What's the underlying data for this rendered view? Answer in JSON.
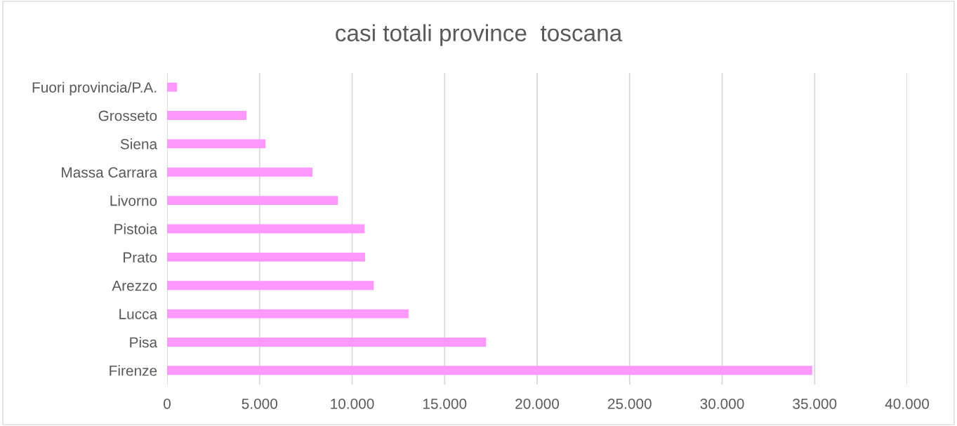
{
  "chart_data": {
    "type": "bar",
    "orientation": "horizontal",
    "title": "casi totali province  toscana",
    "categories": [
      "Fuori provincia/P.A.",
      "Grosseto",
      "Siena",
      "Massa Carrara",
      "Livorno",
      "Pistoia",
      "Prato",
      "Arezzo",
      "Lucca",
      "Pisa",
      "Firenze"
    ],
    "values": [
      540,
      4290,
      5320,
      7860,
      9230,
      10680,
      10700,
      11170,
      13050,
      17240,
      34870
    ],
    "color": "#ff99ff",
    "xlim": [
      0,
      40000
    ],
    "xticks": [
      0,
      {
        "value": 5000,
        "label": "5.000"
      },
      {
        "value": 10000,
        "label": "10.000"
      },
      {
        "value": 15000,
        "label": "15.000"
      },
      {
        "value": 20000,
        "label": "20.000"
      },
      {
        "value": 25000,
        "label": "25.000"
      },
      {
        "value": 30000,
        "label": "30.000"
      },
      {
        "value": 35000,
        "label": "35.000"
      },
      {
        "value": 40000,
        "label": "40.000"
      }
    ],
    "grid": "x",
    "legend": false
  }
}
